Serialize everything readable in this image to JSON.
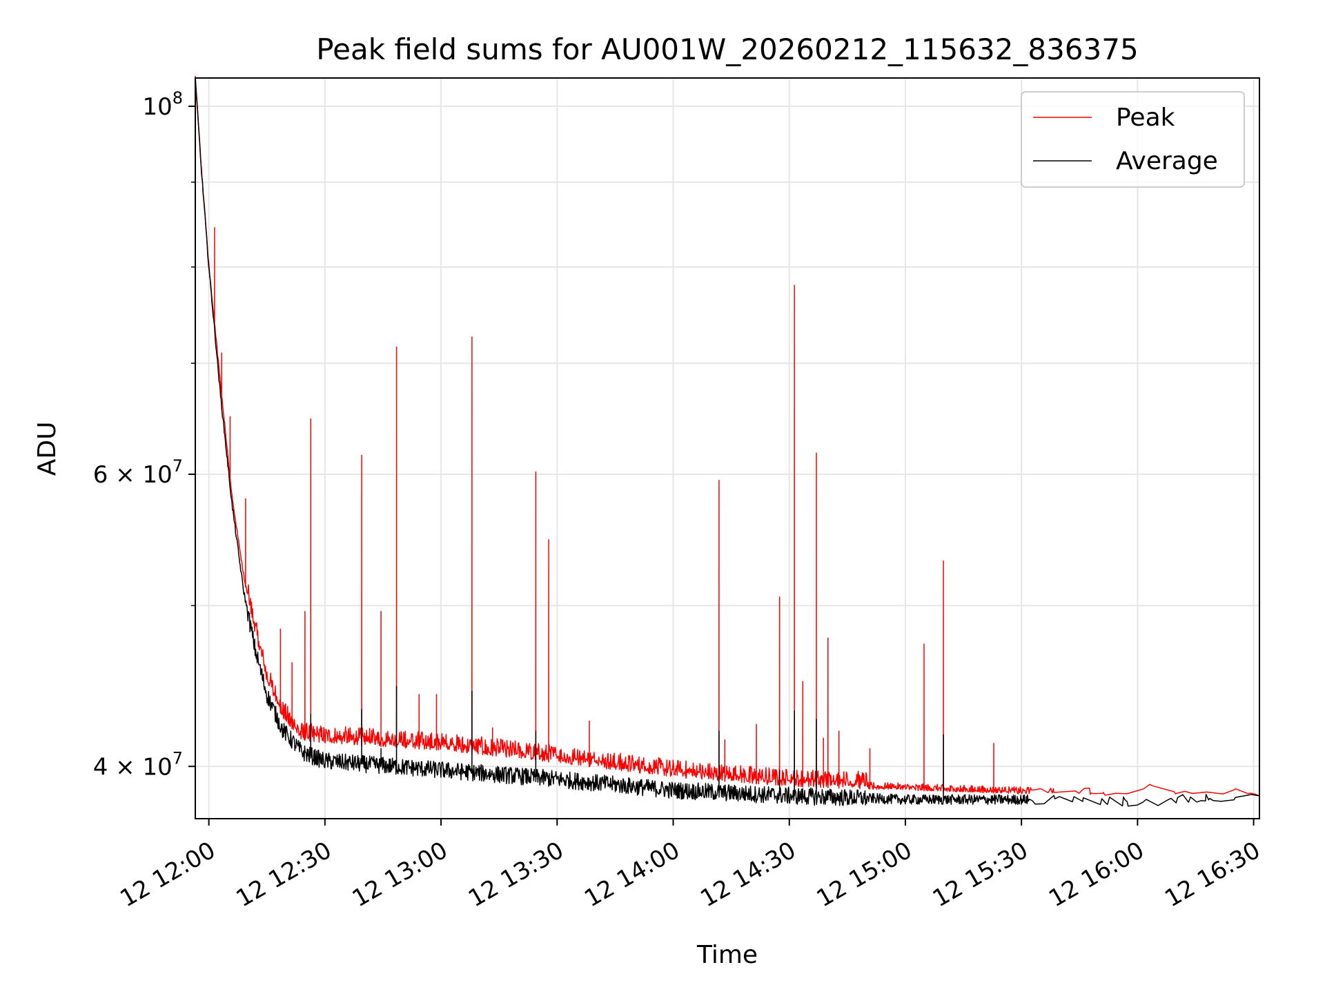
{
  "chart_data": {
    "type": "line",
    "title": "Peak field sums for AU001W_20260212_115632_836375",
    "xlabel": "Time",
    "ylabel": "ADU",
    "yscale": "log",
    "xlim": [
      "2026-02-12 11:56:30",
      "2026-02-12 16:31:30"
    ],
    "ylim": [
      37200000,
      104000000
    ],
    "grid": true,
    "legend_position": "top-right",
    "x_ticks": [
      "2026-02-12 12:00",
      "2026-02-12 12:30",
      "2026-02-12 13:00",
      "2026-02-12 13:30",
      "2026-02-12 14:00",
      "2026-02-12 14:30",
      "2026-02-12 15:00",
      "2026-02-12 15:30",
      "2026-02-12 16:00",
      "2026-02-12 16:30"
    ],
    "x_tick_labels": [
      "12 12:00",
      "12 12:30",
      "12 13:00",
      "12 13:30",
      "12 14:00",
      "12 14:30",
      "12 15:00",
      "12 15:30",
      "12 16:00",
      "12 16:30"
    ],
    "y_ticks": [
      {
        "value": 100000000,
        "base": "10",
        "exp": "8",
        "mult": ""
      },
      {
        "value": 60000000,
        "base": "10",
        "exp": "7",
        "mult": "6 × "
      },
      {
        "value": 40000000,
        "base": "10",
        "exp": "7",
        "mult": "4 × "
      }
    ],
    "y_minor_ticks": [
      50000000,
      70000000,
      80000000,
      90000000
    ],
    "series": [
      {
        "name": "Peak",
        "color": "#ff0000",
        "baseline": [
          [
            "2026-02-12 11:56:30",
            104000000
          ],
          [
            "2026-02-12 11:58",
            92000000
          ],
          [
            "2026-02-12 12:00",
            80000000
          ],
          [
            "2026-02-12 12:03",
            68000000
          ],
          [
            "2026-02-12 12:06",
            58000000
          ],
          [
            "2026-02-12 12:09",
            52000000
          ],
          [
            "2026-02-12 12:12",
            48000000
          ],
          [
            "2026-02-12 12:15",
            45000000
          ],
          [
            "2026-02-12 12:19",
            42800000
          ],
          [
            "2026-02-12 12:24",
            41500000
          ],
          [
            "2026-02-12 12:30",
            41300000
          ],
          [
            "2026-02-12 13:00",
            40900000
          ],
          [
            "2026-02-12 13:30",
            40200000
          ],
          [
            "2026-02-12 14:00",
            39400000
          ],
          [
            "2026-02-12 14:30",
            38900000
          ],
          [
            "2026-02-12 15:00",
            38700000
          ],
          [
            "2026-02-12 15:30",
            38500000
          ],
          [
            "2026-02-12 16:00",
            38400000
          ],
          [
            "2026-02-12 16:03",
            38900000
          ],
          [
            "2026-02-12 16:05",
            38450000
          ],
          [
            "2026-02-12 16:31:30",
            38400000
          ]
        ],
        "spikes": [
          [
            "2026-02-12 12:01:30",
            84500000
          ],
          [
            "2026-02-12 12:03:20",
            71000000
          ],
          [
            "2026-02-12 12:05:30",
            65000000
          ],
          [
            "2026-02-12 12:09:30",
            58000000
          ],
          [
            "2026-02-12 12:18:30",
            48400000
          ],
          [
            "2026-02-12 12:21:30",
            46200000
          ],
          [
            "2026-02-12 12:24:50",
            49600000
          ],
          [
            "2026-02-12 12:26:20",
            64800000
          ],
          [
            "2026-02-12 12:39:30",
            61600000
          ],
          [
            "2026-02-12 12:44:30",
            49600000
          ],
          [
            "2026-02-12 12:48:30",
            71600000
          ],
          [
            "2026-02-12 12:54:20",
            44200000
          ],
          [
            "2026-02-12 12:58:50",
            44200000
          ],
          [
            "2026-02-12 13:08:00",
            72600000
          ],
          [
            "2026-02-12 13:13:20",
            42200000
          ],
          [
            "2026-02-12 13:24:30",
            60200000
          ],
          [
            "2026-02-12 13:27:50",
            54800000
          ],
          [
            "2026-02-12 13:38:20",
            42600000
          ],
          [
            "2026-02-12 14:03:20",
            40300000
          ],
          [
            "2026-02-12 14:11:50",
            59500000
          ],
          [
            "2026-02-12 14:13:20",
            41500000
          ],
          [
            "2026-02-12 14:21:30",
            42400000
          ],
          [
            "2026-02-12 14:27:30",
            50600000
          ],
          [
            "2026-02-12 14:31:20",
            78000000
          ],
          [
            "2026-02-12 14:33:30",
            45000000
          ],
          [
            "2026-02-12 14:37:00",
            61800000
          ],
          [
            "2026-02-12 14:38:50",
            41600000
          ],
          [
            "2026-02-12 14:40:00",
            47800000
          ],
          [
            "2026-02-12 14:42:50",
            42000000
          ],
          [
            "2026-02-12 14:50:50",
            41000000
          ],
          [
            "2026-02-12 15:04:50",
            47400000
          ],
          [
            "2026-02-12 15:09:50",
            53200000
          ],
          [
            "2026-02-12 15:22:50",
            41300000
          ],
          [
            "2026-02-12 15:36:30",
            39400000
          ],
          [
            "2026-02-12 15:45:20",
            39700000
          ],
          [
            "2026-02-12 15:52:20",
            40400000
          ],
          [
            "2026-02-12 16:11:20",
            39500000
          ],
          [
            "2026-02-12 16:14:30",
            39300000
          ]
        ]
      },
      {
        "name": "Average",
        "color": "#000000",
        "baseline": [
          [
            "2026-02-12 11:56:30",
            104000000
          ],
          [
            "2026-02-12 11:58",
            92000000
          ],
          [
            "2026-02-12 12:00",
            80000000
          ],
          [
            "2026-02-12 12:03",
            67000000
          ],
          [
            "2026-02-12 12:06",
            57500000
          ],
          [
            "2026-02-12 12:09",
            51000000
          ],
          [
            "2026-02-12 12:12",
            47000000
          ],
          [
            "2026-02-12 12:15",
            44200000
          ],
          [
            "2026-02-12 12:19",
            42100000
          ],
          [
            "2026-02-12 12:24",
            40800000
          ],
          [
            "2026-02-12 12:30",
            40300000
          ],
          [
            "2026-02-12 13:00",
            39800000
          ],
          [
            "2026-02-12 13:30",
            39300000
          ],
          [
            "2026-02-12 14:00",
            38700000
          ],
          [
            "2026-02-12 14:30",
            38400000
          ],
          [
            "2026-02-12 15:00",
            38200000
          ],
          [
            "2026-02-12 15:30",
            38200000
          ],
          [
            "2026-02-12 16:00",
            38100000
          ],
          [
            "2026-02-12 16:31:30",
            38400000
          ]
        ],
        "spikes": [
          [
            "2026-02-12 12:26:20",
            43000000
          ],
          [
            "2026-02-12 12:39:30",
            43300000
          ],
          [
            "2026-02-12 12:44:30",
            41000000
          ],
          [
            "2026-02-12 12:48:30",
            44700000
          ],
          [
            "2026-02-12 13:08:00",
            44400000
          ],
          [
            "2026-02-12 13:24:30",
            42000000
          ],
          [
            "2026-02-12 14:11:50",
            42000000
          ],
          [
            "2026-02-12 14:27:30",
            39800000
          ],
          [
            "2026-02-12 14:31:20",
            43200000
          ],
          [
            "2026-02-12 14:37:00",
            42700000
          ],
          [
            "2026-02-12 15:09:50",
            41800000
          ]
        ]
      }
    ]
  }
}
